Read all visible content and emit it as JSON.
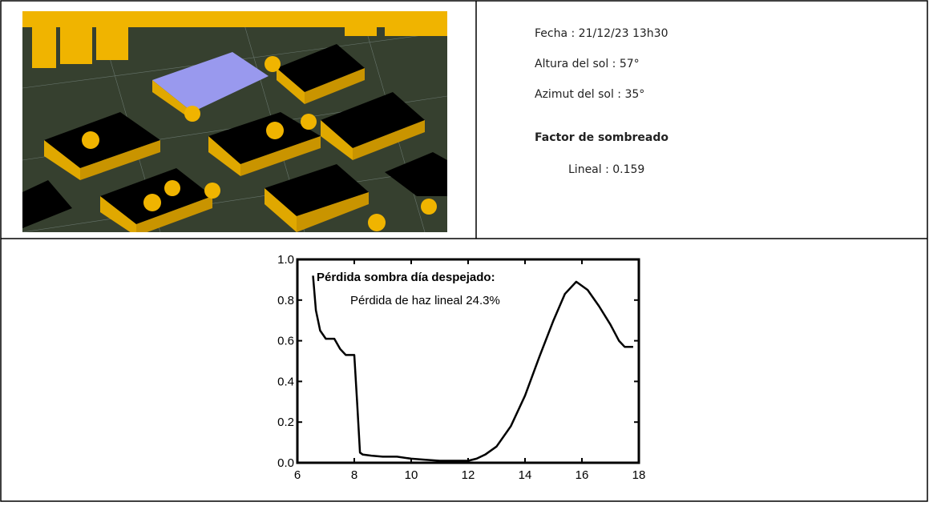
{
  "info": {
    "lines": [
      "Fecha : 21/12/23 13h30",
      "Altura del sol : 57°",
      "Azimut del sol : 35°"
    ],
    "heading": "Factor de sombreado",
    "factor": "Lineal : 0.159"
  },
  "chart_data": {
    "type": "line",
    "color": "#000000",
    "annotations": [
      "Pérdida sombra día despejado:",
      "Pérdida de haz lineal 24.3%"
    ],
    "xlim": [
      6,
      18
    ],
    "xticks": [
      6,
      8,
      10,
      12,
      14,
      16,
      18
    ],
    "ylim": [
      0,
      1
    ],
    "yticks": [
      {
        "value": 0,
        "label": "0.0"
      },
      0.2,
      0.4,
      0.6,
      0.8,
      {
        "value": 1,
        "label": "1.0"
      }
    ],
    "x": [
      6.55,
      6.65,
      6.8,
      7.0,
      7.3,
      7.5,
      7.7,
      8.0,
      8.1,
      8.2,
      8.3,
      8.6,
      9.0,
      9.5,
      10,
      10.5,
      11,
      11.5,
      12,
      12.3,
      12.6,
      13,
      13.5,
      14,
      14.5,
      15,
      15.4,
      15.8,
      16.2,
      16.6,
      17,
      17.3,
      17.5,
      17.8
    ],
    "values": [
      0.92,
      0.75,
      0.65,
      0.61,
      0.61,
      0.56,
      0.53,
      0.53,
      0.3,
      0.05,
      0.04,
      0.035,
      0.03,
      0.03,
      0.02,
      0.015,
      0.01,
      0.01,
      0.01,
      0.02,
      0.04,
      0.08,
      0.18,
      0.33,
      0.52,
      0.7,
      0.83,
      0.89,
      0.85,
      0.77,
      0.68,
      0.6,
      0.57,
      0.57
    ]
  }
}
